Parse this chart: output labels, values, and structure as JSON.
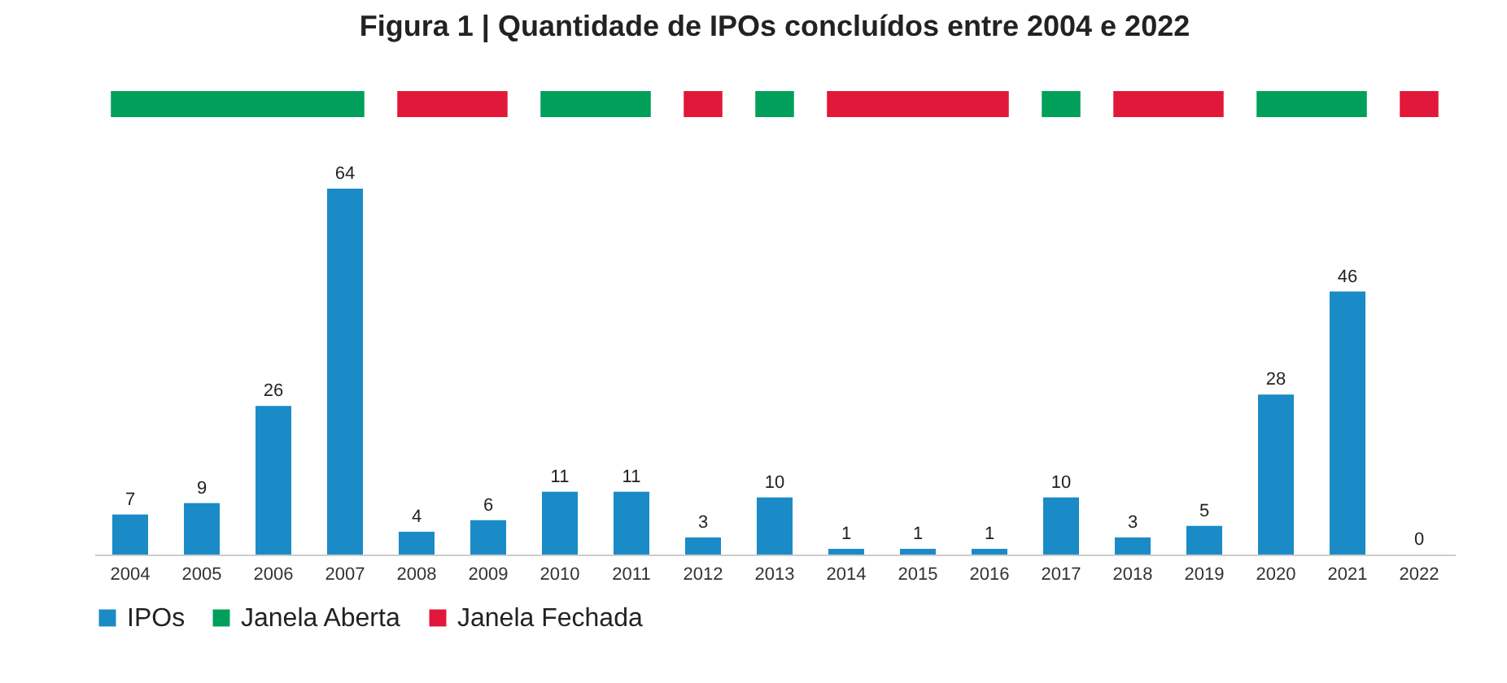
{
  "chart_data": {
    "type": "bar",
    "title": "Figura 1 | Quantidade de IPOs concluídos entre 2004 e 2022",
    "categories": [
      "2004",
      "2005",
      "2006",
      "2007",
      "2008",
      "2009",
      "2010",
      "2011",
      "2012",
      "2013",
      "2014",
      "2015",
      "2016",
      "2017",
      "2018",
      "2019",
      "2020",
      "2021",
      "2022"
    ],
    "series": [
      {
        "name": "IPOs",
        "color": "#1a8bc7",
        "values": [
          7,
          9,
          26,
          64,
          4,
          6,
          11,
          11,
          3,
          10,
          1,
          1,
          1,
          10,
          3,
          5,
          28,
          46,
          0
        ]
      }
    ],
    "bands": [
      {
        "axis": "x",
        "from": "2004",
        "to": "2007",
        "label": "Janela Aberta",
        "color": "#00a05a"
      },
      {
        "axis": "x",
        "from": "2008",
        "to": "2009",
        "label": "Janela Fechada",
        "color": "#e2183a"
      },
      {
        "axis": "x",
        "from": "2010",
        "to": "2011",
        "color": "#00a05a"
      },
      {
        "axis": "x",
        "from": "2012",
        "to": "2012",
        "color": "#e2183a"
      },
      {
        "axis": "x",
        "from": "2013",
        "to": "2013",
        "color": "#00a05a"
      },
      {
        "axis": "x",
        "from": "2014",
        "to": "2016",
        "color": "#e2183a"
      },
      {
        "axis": "x",
        "from": "2017",
        "to": "2017",
        "color": "#00a05a"
      },
      {
        "axis": "x",
        "from": "2018",
        "to": "2019",
        "color": "#e2183a"
      },
      {
        "axis": "x",
        "from": "2020",
        "to": "2021",
        "color": "#00a05a"
      },
      {
        "axis": "x",
        "from": "2022",
        "to": "2022",
        "color": "#e2183a"
      }
    ],
    "data_labels": true,
    "legend": "bottom left"
  }
}
